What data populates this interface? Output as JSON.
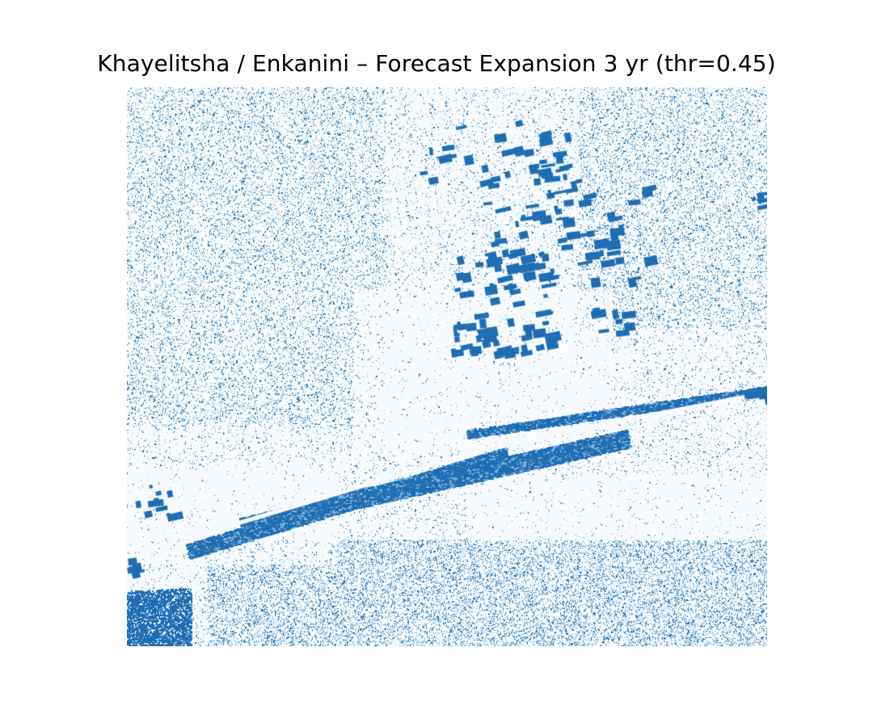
{
  "chart_data": {
    "type": "heatmap",
    "title": "Khayelitsha / Enkanini – Forecast Expansion 3 yr (thr=0.45)",
    "xlabel": "",
    "ylabel": "",
    "axes_visible": false,
    "colormap": "Blues",
    "threshold": 0.45,
    "values_range": [
      0,
      1
    ],
    "colors": {
      "background": "#f7fbff",
      "expansion": "#1f6eb4",
      "expansion_light": "#7fb0d8"
    }
  }
}
